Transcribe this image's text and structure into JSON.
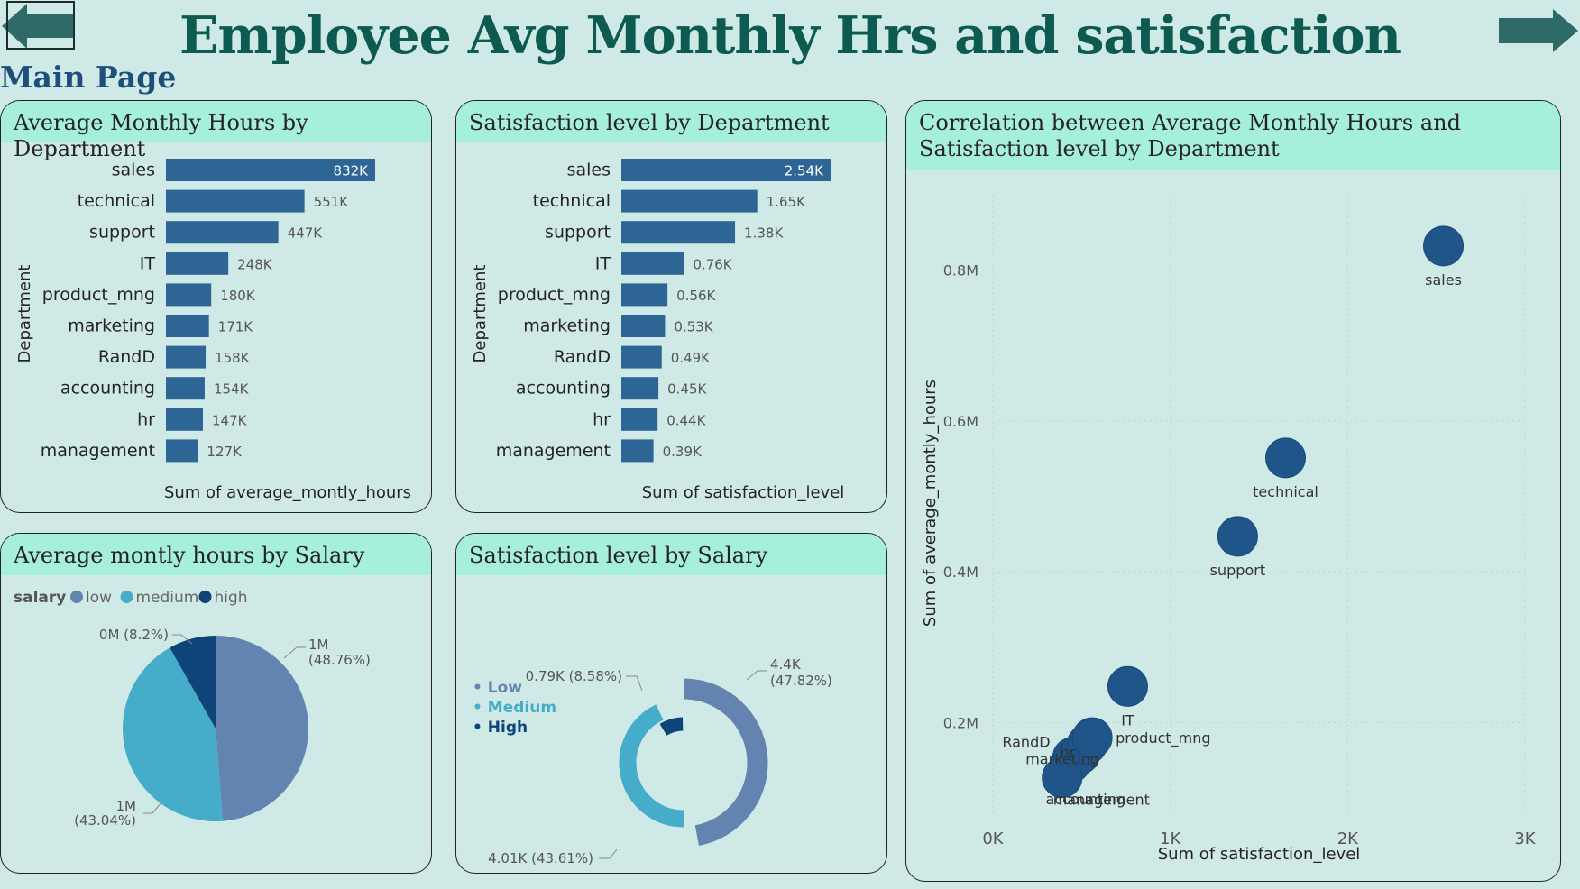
{
  "page": {
    "title": "Employee Avg Monthly Hrs and satisfaction",
    "nav_label": "Main Page"
  },
  "icons": {
    "back": "back-arrow-icon",
    "forward": "forward-arrow-icon"
  },
  "colors": {
    "bar": "#2d6595",
    "low": "#6384b0",
    "medium": "#45adc9",
    "high": "#0f447b",
    "header": "#a6efdc",
    "title": "#0d5a50",
    "nav": "#1d4f7a"
  },
  "cards": {
    "hours_dept": {
      "title": "Average Monthly Hours by Department"
    },
    "sat_dept": {
      "title": "Satisfaction level by Department"
    },
    "hours_salary": {
      "title": "Average montly hours by Salary"
    },
    "sat_salary": {
      "title": "Satisfaction level by Salary"
    },
    "scatter": {
      "title": "Correlation between Average Monthly Hours and Satisfaction level by Department"
    }
  },
  "chart_data": [
    {
      "type": "bar",
      "orientation": "horizontal",
      "title": "Average Monthly Hours by Department",
      "xlabel": "Sum of average_montly_hours",
      "ylabel": "Department",
      "categories": [
        "sales",
        "technical",
        "support",
        "IT",
        "product_mng",
        "marketing",
        "RandD",
        "accounting",
        "hr",
        "management"
      ],
      "values": [
        832000,
        551000,
        447000,
        248000,
        180000,
        171000,
        158000,
        154000,
        147000,
        127000
      ],
      "data_labels": [
        "832K",
        "551K",
        "447K",
        "248K",
        "180K",
        "171K",
        "158K",
        "154K",
        "147K",
        "127K"
      ]
    },
    {
      "type": "bar",
      "orientation": "horizontal",
      "title": "Satisfaction level by Department",
      "xlabel": "Sum of satisfaction_level",
      "ylabel": "Department",
      "categories": [
        "sales",
        "technical",
        "support",
        "IT",
        "product_mng",
        "marketing",
        "RandD",
        "accounting",
        "hr",
        "management"
      ],
      "values": [
        2540,
        1650,
        1380,
        760,
        560,
        530,
        490,
        450,
        440,
        390
      ],
      "data_labels": [
        "2.54K",
        "1.65K",
        "1.38K",
        "0.76K",
        "0.56K",
        "0.53K",
        "0.49K",
        "0.45K",
        "0.44K",
        "0.39K"
      ]
    },
    {
      "type": "pie",
      "title": "Average montly hours by Salary",
      "legend_title": "salary",
      "legend_position": "top-left",
      "categories": [
        "low",
        "medium",
        "high"
      ],
      "values": [
        48.76,
        43.04,
        8.2
      ],
      "data_labels": [
        [
          "1M",
          "(48.76%)"
        ],
        [
          "1M",
          "(43.04%)"
        ],
        [
          "0M (8.2%)"
        ]
      ]
    },
    {
      "type": "pie",
      "variant": "radial-rings",
      "title": "Satisfaction level by Salary",
      "legend_position": "left",
      "categories": [
        "Low",
        "Medium",
        "High"
      ],
      "values": [
        4400,
        4010,
        790
      ],
      "percent": [
        47.82,
        43.61,
        8.58
      ],
      "data_labels": [
        [
          "4.4K",
          "(47.82%)"
        ],
        [
          "4.01K (43.61%)"
        ],
        [
          "0.79K (8.58%)"
        ]
      ]
    },
    {
      "type": "scatter",
      "title": "Correlation between Average Monthly Hours and Satisfaction level by Department",
      "xlabel": "Sum of satisfaction_level",
      "ylabel": "Sum of average_montly_hours",
      "xlim": [
        0,
        3000
      ],
      "ylim": [
        75000,
        900000
      ],
      "xticks": [
        "0K",
        "1K",
        "2K",
        "3K"
      ],
      "xtick_values": [
        0,
        1000,
        2000,
        3000
      ],
      "yticks": [
        "0.2M",
        "0.4M",
        "0.6M",
        "0.8M"
      ],
      "ytick_values": [
        200000,
        400000,
        600000,
        800000
      ],
      "grid": true,
      "points": [
        {
          "label": "sales",
          "x": 2540,
          "y": 832000
        },
        {
          "label": "technical",
          "x": 1650,
          "y": 551000
        },
        {
          "label": "support",
          "x": 1380,
          "y": 447000
        },
        {
          "label": "IT",
          "x": 760,
          "y": 248000
        },
        {
          "label": "product_mng",
          "x": 560,
          "y": 180000
        },
        {
          "label": "management",
          "x": 390,
          "y": 127000
        },
        {
          "label": "marketing",
          "x": 530,
          "y": 171000
        },
        {
          "label": "RandD",
          "x": 490,
          "y": 158000
        },
        {
          "label": "hr",
          "x": 440,
          "y": 147000
        },
        {
          "label": "accounting",
          "x": 450,
          "y": 154000
        }
      ]
    }
  ]
}
